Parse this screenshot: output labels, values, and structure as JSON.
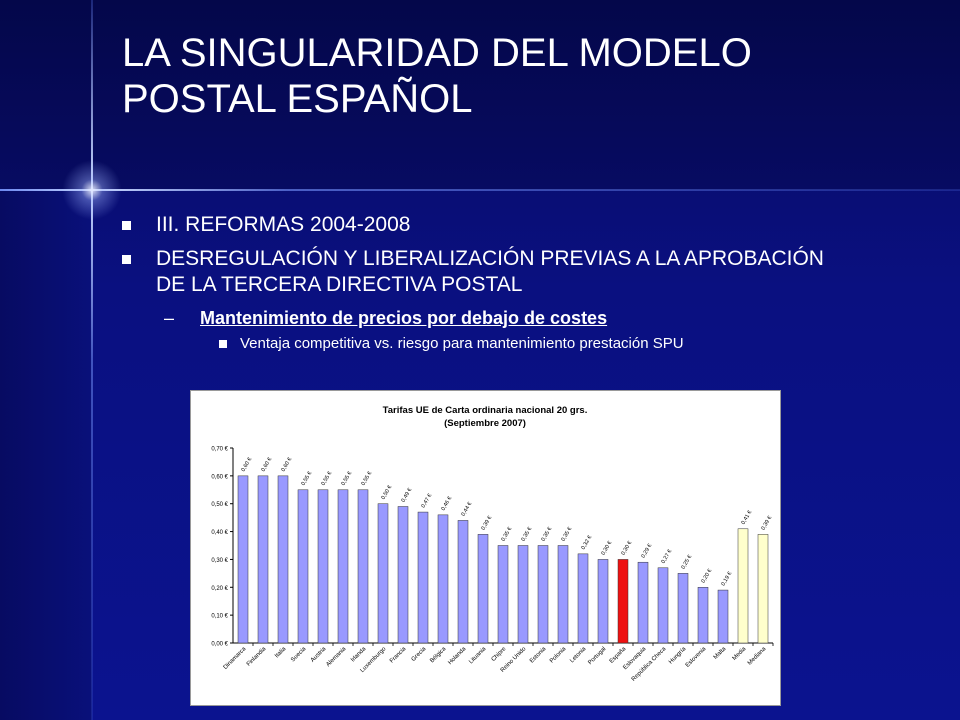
{
  "slide": {
    "title_line1": "LA SINGULARIDAD DEL MODELO",
    "title_line2": "POSTAL ESPAÑOL",
    "bullet1": "III. REFORMAS 2004-2008",
    "bullet2_line1": "DESREGULACIÓN Y LIBERALIZACIÓN PREVIAS A LA APROBACIÓN",
    "bullet2_line2": "DE LA TERCERA DIRECTIVA POSTAL",
    "sub_dash": "–",
    "sub_bullet": "Mantenimiento de precios por debajo de costes",
    "subsub_bullet": "Ventaja competitiva vs. riesgo para mantenimiento prestación SPU"
  },
  "chart_data": {
    "type": "bar",
    "title_line1": "Tarifas UE de Carta ordinaria nacional 20 grs.",
    "title_line2": "(Septiembre 2007)",
    "categories": [
      "Dinamarca",
      "Finlandia",
      "Italia",
      "Suecia",
      "Austria",
      "Alemania",
      "Irlanda",
      "Luxemburgo",
      "Francia",
      "Grecia",
      "Bélgica",
      "Holanda",
      "Lituania",
      "Chipre",
      "Reino Unido",
      "Estonia",
      "Polonia",
      "Letonia",
      "Portugal",
      "España",
      "Eslovaquia",
      "República Checa",
      "Hungría",
      "Eslovenia",
      "Malta",
      "Media",
      "Mediana"
    ],
    "values": [
      0.6,
      0.6,
      0.6,
      0.55,
      0.55,
      0.55,
      0.55,
      0.5,
      0.49,
      0.47,
      0.46,
      0.44,
      0.39,
      0.35,
      0.35,
      0.35,
      0.35,
      0.32,
      0.3,
      0.3,
      0.29,
      0.27,
      0.25,
      0.2,
      0.19,
      0.41,
      0.39
    ],
    "value_labels": [
      "0,60 €",
      "0,60 €",
      "0,60 €",
      "0,55 €",
      "0,55 €",
      "0,55 €",
      "0,55 €",
      "0,50 €",
      "0,49 €",
      "0,47 €",
      "0,46 €",
      "0,44 €",
      "0,39 €",
      "0,35 €",
      "0,35 €",
      "0,35 €",
      "0,35 €",
      "0,32 €",
      "0,30 €",
      "0,30 €",
      "0,29 €",
      "0,27 €",
      "0,25 €",
      "0,20 €",
      "0,19 €",
      "0,41 €",
      "0,39 €"
    ],
    "bar_kinds": [
      "country",
      "country",
      "country",
      "country",
      "country",
      "country",
      "country",
      "country",
      "country",
      "country",
      "country",
      "country",
      "country",
      "country",
      "country",
      "country",
      "country",
      "country",
      "country",
      "highlight",
      "country",
      "country",
      "country",
      "country",
      "country",
      "summary",
      "summary"
    ],
    "colors": {
      "country": "#9999ff",
      "highlight": "#ee1111",
      "summary": "#ffffcc",
      "outline": "#333333"
    },
    "ylim": [
      0,
      0.7
    ],
    "ytick_values": [
      0.0,
      0.1,
      0.2,
      0.3,
      0.4,
      0.5,
      0.6,
      0.7
    ],
    "ytick_labels": [
      "0,00 €",
      "0,10 €",
      "0,20 €",
      "0,30 €",
      "0,40 €",
      "0,50 €",
      "0,60 €",
      "0,70 €"
    ],
    "grid": false,
    "legend": "none"
  }
}
